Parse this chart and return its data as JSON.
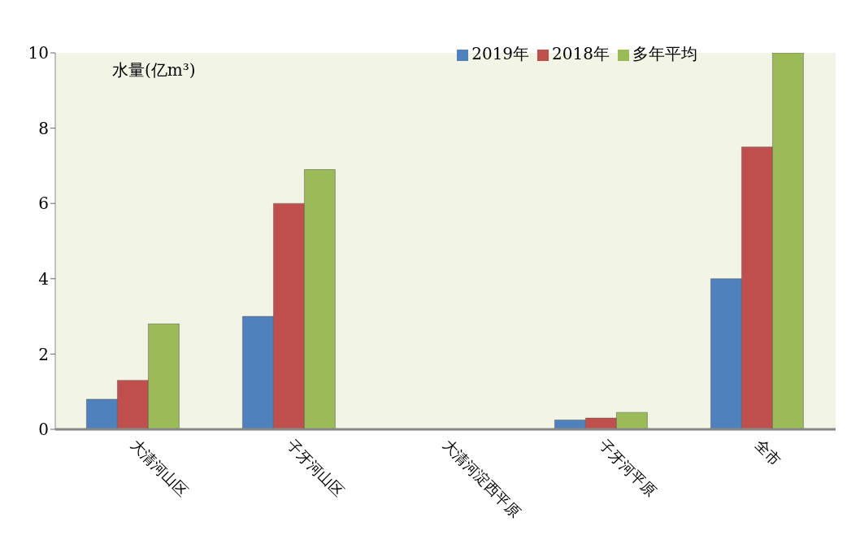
{
  "chart_data": {
    "type": "bar",
    "ylabel": "水量(亿m³)",
    "categories": [
      "大清河山区",
      "子牙河山区",
      "大清河淀西平原",
      "子牙河平原",
      "全市"
    ],
    "series": [
      {
        "name": "2019年",
        "color": "#4f81bd",
        "values": [
          0.8,
          3.0,
          0,
          0.25,
          4.0
        ]
      },
      {
        "name": "2018年",
        "color": "#c0504d",
        "values": [
          1.3,
          6.0,
          0,
          0.3,
          7.5
        ]
      },
      {
        "name": "多年平均",
        "color": "#9bbb59",
        "values": [
          2.8,
          6.9,
          0,
          0.45,
          10
        ]
      }
    ],
    "ylim": [
      0,
      10
    ],
    "yticks": [
      0,
      2,
      4,
      6,
      8,
      10
    ],
    "grid": false,
    "legend": "top right"
  }
}
